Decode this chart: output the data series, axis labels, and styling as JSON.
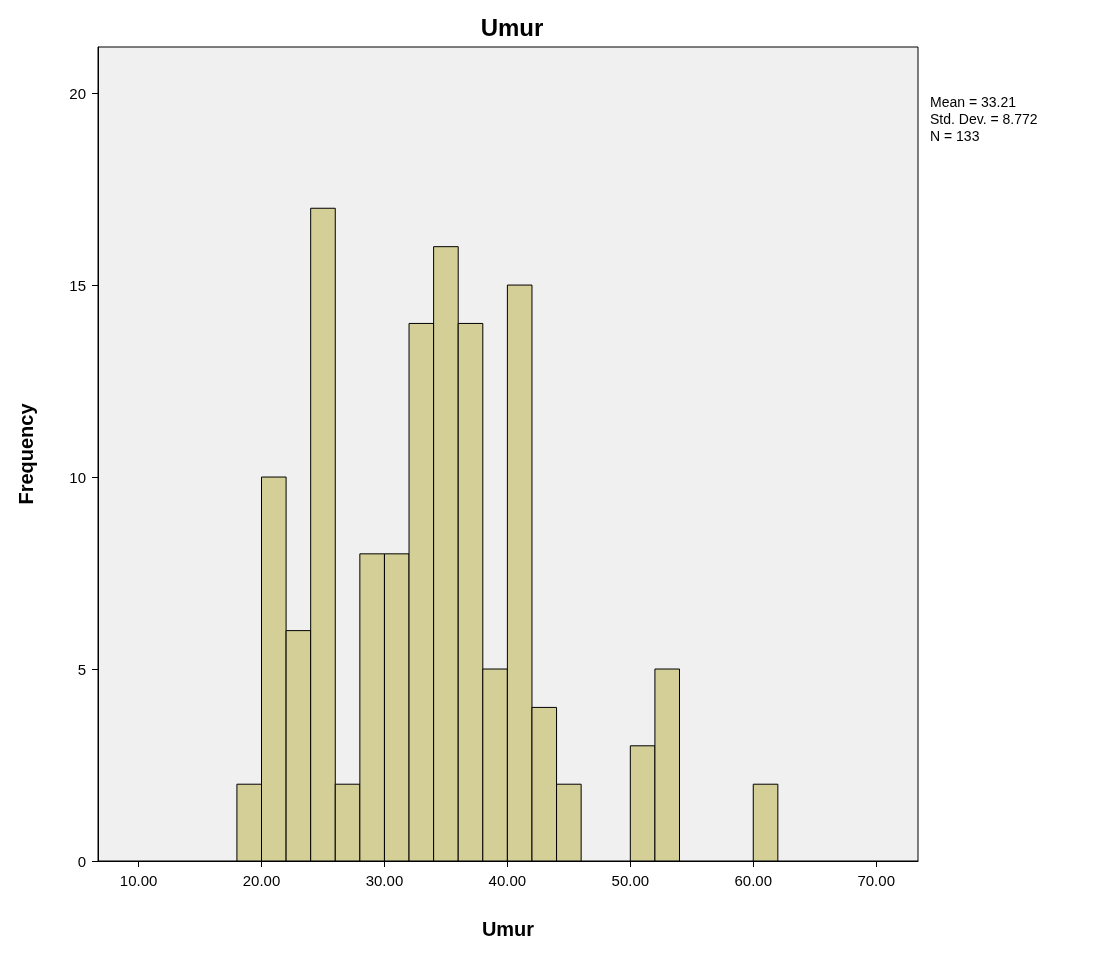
{
  "chart_data": {
    "type": "histogram",
    "title": "Umur",
    "xlabel": "Umur",
    "ylabel": "Frequency",
    "bins": [
      18,
      20,
      22,
      24,
      26,
      28,
      30,
      32,
      34,
      36,
      38,
      40,
      42,
      44,
      46,
      48,
      50,
      52,
      54,
      56,
      58,
      60,
      62
    ],
    "values": [
      2,
      10,
      6,
      17,
      2,
      8,
      8,
      14,
      16,
      14,
      5,
      15,
      4,
      2,
      0,
      0,
      3,
      5,
      0,
      0,
      0,
      2
    ],
    "color": "#d4cf97",
    "xlim": [
      6.7,
      73.4
    ],
    "xticks": [
      {
        "value": 10,
        "label": "10.00"
      },
      {
        "value": 20,
        "label": "20.00"
      },
      {
        "value": 30,
        "label": "30.00"
      },
      {
        "value": 40,
        "label": "40.00"
      },
      {
        "value": 50,
        "label": "50.00"
      },
      {
        "value": 60,
        "label": "60.00"
      },
      {
        "value": 70,
        "label": "70.00"
      }
    ],
    "ylim": [
      0,
      21.2
    ],
    "yticks": [
      0,
      5,
      10,
      15,
      20
    ],
    "grid": false,
    "annotations": [
      "Mean = 33.21",
      "Std. Dev. = 8.772",
      "N = 133"
    ]
  }
}
